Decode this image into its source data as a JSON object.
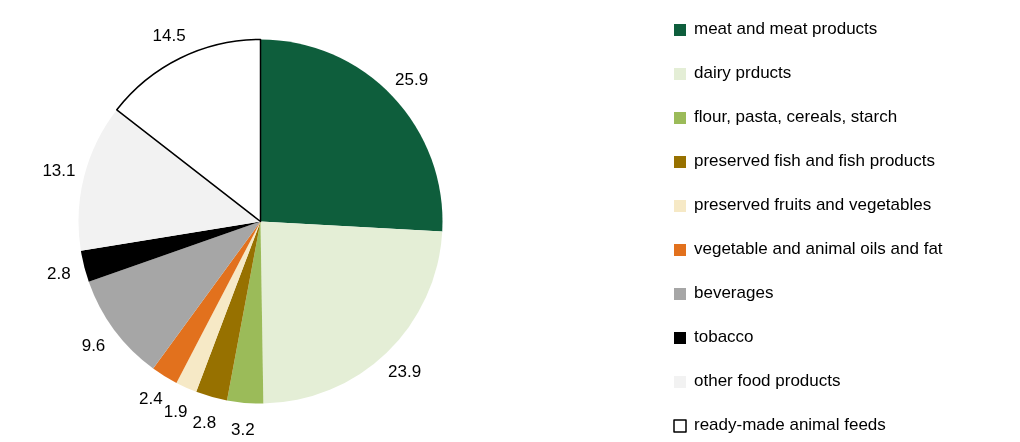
{
  "chart_data": {
    "type": "pie",
    "categories": [
      "meat and meat products",
      "dairy prducts",
      "flour, pasta, cereals, starch",
      "preserved fish and fish products",
      "preserved fruits and vegetables",
      "vegetable and animal oils and fat",
      "beverages",
      "tobacco",
      "other food products",
      "ready-made animal feeds"
    ],
    "values": [
      25.9,
      23.9,
      3.2,
      2.8,
      1.9,
      2.4,
      9.6,
      2.8,
      13.1,
      14.5
    ],
    "colors": [
      "#0e5e3c",
      "#e4eed6",
      "#9bbb59",
      "#977100",
      "#f6e9c6",
      "#e2711d",
      "#a6a6a6",
      "#000000",
      "#f2f2f2",
      "#ffffff"
    ],
    "data_labels": true,
    "legend": "right"
  }
}
